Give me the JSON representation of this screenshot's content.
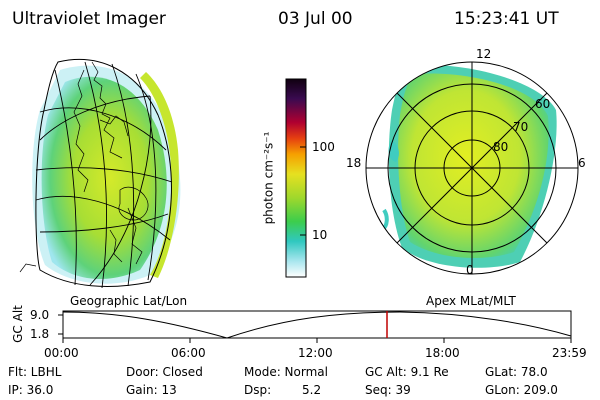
{
  "header": {
    "title": "Ultraviolet Imager",
    "date": "03 Jul 00",
    "time": "15:23:41 UT"
  },
  "colorbar": {
    "unit_label": "photon cm⁻²s⁻¹",
    "ticks": [
      "100",
      "10"
    ]
  },
  "left_panel": {
    "label": "Geographic Lat/Lon"
  },
  "right_panel": {
    "label": "Apex MLat/MLT",
    "mlt_labels": [
      "12",
      "18",
      "6",
      "0"
    ],
    "mlat_labels": [
      "60",
      "70",
      "80"
    ]
  },
  "altitude_plot": {
    "ylabel": "GC Alt",
    "yticks": [
      "9.0",
      "1.8"
    ],
    "xticks": [
      "00:00",
      "06:00",
      "12:00",
      "18:00",
      "23:59"
    ],
    "current_time_marker": "15:23:41"
  },
  "info": {
    "flt": "Flt: LBHL",
    "ip": "IP: 36.0",
    "door": "Door: Closed",
    "gain": "Gain: 13",
    "mode": "Mode: Normal",
    "dsp_label": "Dsp:",
    "dsp_value": "5.2",
    "gc_alt": "GC Alt: 9.1 Re",
    "seq": "Seq: 39",
    "glat": "GLat: 78.0",
    "glon": "GLon: 209.0"
  },
  "colors": {
    "aurora_bright": "#c8e830",
    "aurora_mid": "#8fd43a",
    "aurora_edge": "#3cd0b8",
    "aurora_faint": "#9fe6ee",
    "marker_red": "#c00000"
  }
}
